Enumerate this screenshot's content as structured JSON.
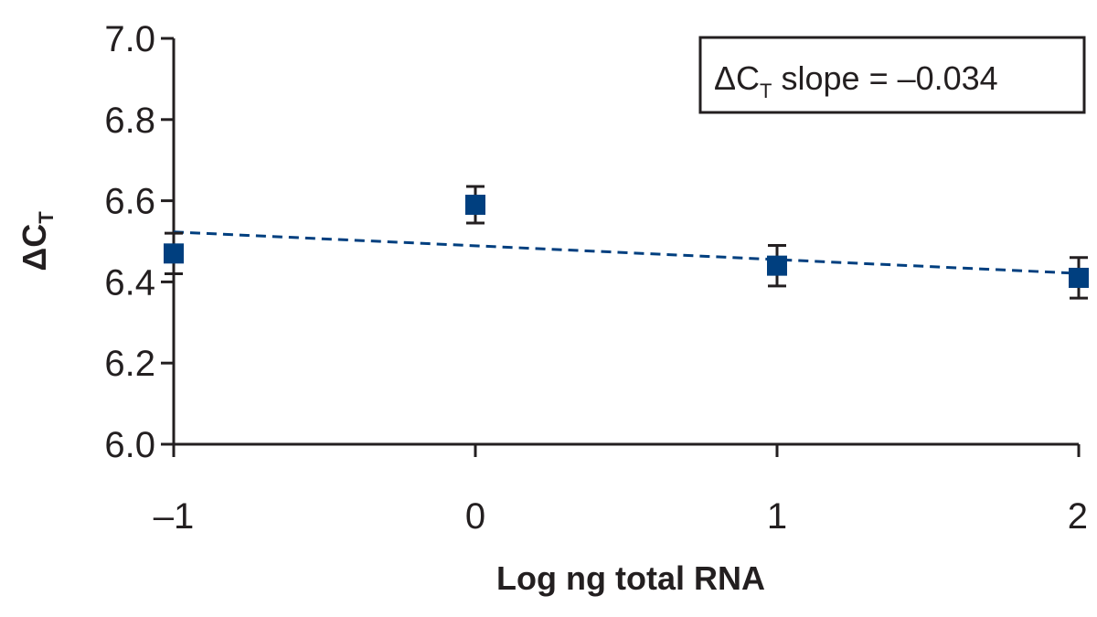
{
  "chart_data": {
    "type": "scatter",
    "xlabel": "Log ng total RNA",
    "ylabel": {
      "main": "ΔC",
      "sub": "T"
    },
    "xlim": [
      -1,
      2
    ],
    "ylim": [
      6.0,
      7.0
    ],
    "x_ticks": [
      -1,
      0,
      1,
      2
    ],
    "x_tick_labels": [
      "–1",
      "0",
      "1",
      "2"
    ],
    "y_ticks": [
      6.0,
      6.2,
      6.4,
      6.6,
      6.8,
      7.0
    ],
    "y_tick_labels": [
      "6.0",
      "6.2",
      "6.4",
      "6.6",
      "6.8",
      "7.0"
    ],
    "grid": false,
    "series": [
      {
        "points": [
          {
            "x": -1,
            "y": 6.47,
            "err": 0.05
          },
          {
            "x": 0,
            "y": 6.59,
            "err": 0.045
          },
          {
            "x": 1,
            "y": 6.44,
            "err": 0.05
          },
          {
            "x": 2,
            "y": 6.41,
            "err": 0.05
          }
        ],
        "color": "#003f7f"
      }
    ],
    "trendline": {
      "slope": -0.034,
      "intercept": 6.489,
      "style": "dashed",
      "color": "#003f7f"
    },
    "annotation": {
      "prefix": "ΔC",
      "sub": "T",
      "suffix": " slope = –0.034",
      "placement": "top-right"
    }
  },
  "colors": {
    "axis": "#231f20",
    "marker": "#003f7f"
  }
}
